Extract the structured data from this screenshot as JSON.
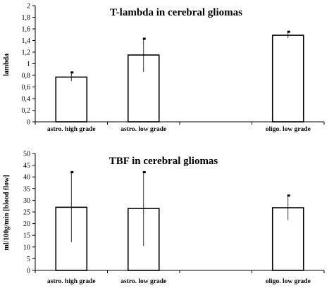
{
  "chart_data": [
    {
      "type": "bar",
      "title": "T-lambda in cerebral gliomas",
      "ylabel": "lambda",
      "xlabel": "",
      "ylim": [
        0,
        2
      ],
      "ytick_labels": [
        "0",
        "0,2",
        "0,4",
        "0,6",
        "0,8",
        "1",
        "1,2",
        "1,4",
        "1,6",
        "1,8",
        "2"
      ],
      "categories": [
        "astro. high grade",
        "astro. low grade",
        "",
        "oligo. low grade"
      ],
      "values": [
        0.77,
        1.15,
        null,
        1.49
      ],
      "error_low": [
        0.7,
        0.86,
        null,
        1.44
      ],
      "error_high": [
        0.85,
        1.43,
        null,
        1.55
      ],
      "grid": false,
      "legend": "none"
    },
    {
      "type": "bar",
      "title": "TBF in cerebral gliomas",
      "ylabel": "ml/100g/min [blood flow]",
      "xlabel": "",
      "ylim": [
        0,
        50
      ],
      "ytick_labels": [
        "0",
        "5",
        "10",
        "15",
        "20",
        "25",
        "30",
        "35",
        "40",
        "45",
        "50"
      ],
      "categories": [
        "astro. high grade",
        "astro. low grade",
        "",
        "oligo. low grade"
      ],
      "values": [
        27,
        26.5,
        null,
        26.8
      ],
      "error_low": [
        12,
        10.5,
        null,
        21.5
      ],
      "error_high": [
        42,
        42,
        null,
        32
      ],
      "grid": false,
      "legend": "none"
    }
  ]
}
